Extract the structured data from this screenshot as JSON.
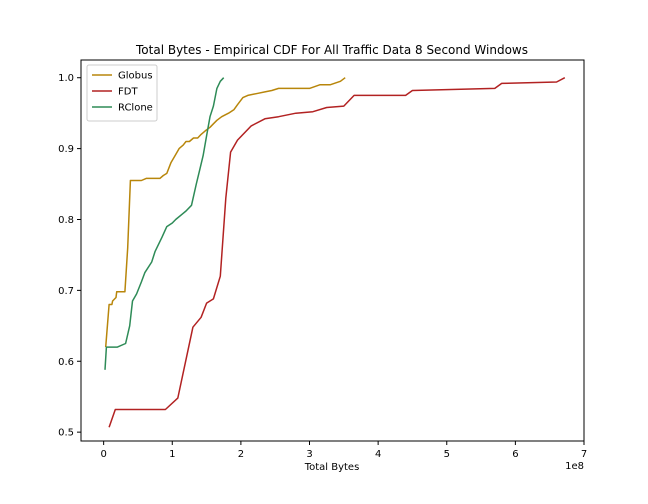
{
  "chart_data": {
    "type": "line",
    "title": "Total Bytes - Empirical CDF For All Traffic Data 8 Second Windows",
    "xlabel": "Total Bytes",
    "ylabel": "",
    "x_offset_label": "1e8",
    "xlim": [
      -0.33,
      7.0
    ],
    "ylim": [
      0.4875,
      1.025
    ],
    "x_ticks": [
      0,
      1,
      2,
      3,
      4,
      5,
      6,
      7
    ],
    "x_tick_labels": [
      "0",
      "1",
      "2",
      "3",
      "4",
      "5",
      "6",
      "7"
    ],
    "y_ticks": [
      0.5,
      0.6,
      0.7,
      0.8,
      0.9,
      1.0
    ],
    "y_tick_labels": [
      "0.5",
      "0.6",
      "0.7",
      "0.8",
      "0.9",
      "1.0"
    ],
    "grid": false,
    "legend_position": "top-left",
    "series": [
      {
        "name": "Globus",
        "color": "#b8860b",
        "x": [
          0.03,
          0.08,
          0.12,
          0.13,
          0.18,
          0.19,
          0.31,
          0.35,
          0.39,
          0.43,
          0.55,
          0.62,
          0.82,
          0.87,
          0.92,
          0.98,
          1.04,
          1.1,
          1.16,
          1.2,
          1.25,
          1.31,
          1.37,
          1.42,
          1.48,
          1.55,
          1.6,
          1.65,
          1.72,
          1.78,
          1.82,
          1.9,
          1.95,
          2.03,
          2.1,
          2.25,
          2.35,
          2.45,
          2.55,
          3.0,
          3.15,
          3.3,
          3.45,
          3.52
        ],
        "y": [
          0.62,
          0.68,
          0.68,
          0.685,
          0.69,
          0.698,
          0.698,
          0.76,
          0.855,
          0.855,
          0.855,
          0.858,
          0.858,
          0.862,
          0.865,
          0.88,
          0.89,
          0.9,
          0.905,
          0.91,
          0.91,
          0.915,
          0.915,
          0.92,
          0.925,
          0.93,
          0.935,
          0.94,
          0.945,
          0.948,
          0.95,
          0.955,
          0.962,
          0.972,
          0.975,
          0.978,
          0.98,
          0.982,
          0.985,
          0.985,
          0.99,
          0.99,
          0.995,
          1.0
        ]
      },
      {
        "name": "FDT",
        "color": "#b22222",
        "x": [
          0.08,
          0.17,
          0.9,
          1.08,
          1.3,
          1.42,
          1.5,
          1.6,
          1.7,
          1.78,
          1.85,
          1.95,
          2.15,
          2.35,
          2.55,
          2.8,
          3.05,
          3.25,
          3.5,
          3.65,
          4.4,
          4.5,
          5.7,
          5.8,
          6.6,
          6.72
        ],
        "y": [
          0.507,
          0.532,
          0.532,
          0.548,
          0.648,
          0.662,
          0.682,
          0.688,
          0.72,
          0.83,
          0.895,
          0.912,
          0.932,
          0.942,
          0.945,
          0.95,
          0.952,
          0.958,
          0.96,
          0.975,
          0.975,
          0.982,
          0.985,
          0.992,
          0.994,
          1.0
        ]
      },
      {
        "name": "RClone",
        "color": "#2e8b57",
        "x": [
          0.02,
          0.04,
          0.2,
          0.32,
          0.38,
          0.42,
          0.48,
          0.55,
          0.6,
          0.7,
          0.75,
          0.85,
          0.92,
          1.0,
          1.05,
          1.15,
          1.2,
          1.28,
          1.35,
          1.4,
          1.45,
          1.5,
          1.55,
          1.6,
          1.65,
          1.7,
          1.75
        ],
        "y": [
          0.588,
          0.62,
          0.62,
          0.625,
          0.65,
          0.685,
          0.695,
          0.712,
          0.725,
          0.74,
          0.755,
          0.775,
          0.79,
          0.795,
          0.8,
          0.808,
          0.812,
          0.82,
          0.85,
          0.87,
          0.89,
          0.918,
          0.945,
          0.96,
          0.985,
          0.995,
          1.0
        ]
      }
    ]
  }
}
